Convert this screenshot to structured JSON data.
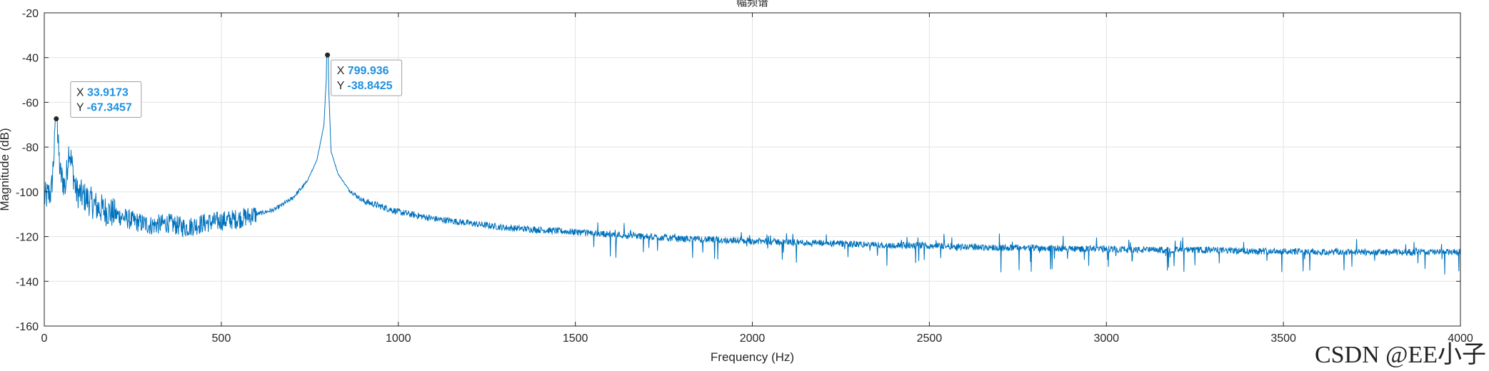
{
  "chart_data": {
    "type": "line",
    "title": "幅频谱",
    "xlabel": "Frequency (Hz)",
    "ylabel": "Magnitude (dB)",
    "xlim": [
      0,
      4000
    ],
    "ylim": [
      -160,
      -20
    ],
    "x_ticks": [
      0,
      500,
      1000,
      1500,
      2000,
      2500,
      3000,
      3500,
      4000
    ],
    "y_ticks": [
      -160,
      -140,
      -120,
      -100,
      -80,
      -60,
      -40,
      -20
    ],
    "grid": true,
    "series": [
      {
        "color": "#0072bd",
        "x": [
          0,
          20,
          33.9173,
          45,
          60,
          70,
          90,
          120,
          150,
          200,
          250,
          300,
          350,
          400,
          450,
          500,
          550,
          600,
          650,
          700,
          740,
          770,
          790,
          799.936,
          810,
          830,
          860,
          900,
          1000,
          1100,
          1200,
          1300,
          1400,
          1500,
          1600,
          1700,
          1800,
          1900,
          2000,
          2100,
          2200,
          2300,
          2400,
          2500,
          2600,
          2700,
          2800,
          2900,
          3000,
          3100,
          3200,
          3300,
          3400,
          3500,
          3600,
          3700,
          3800,
          3900,
          4000
        ],
        "y": [
          -103,
          -100,
          -67.3457,
          -92,
          -98,
          -80,
          -100,
          -103,
          -107,
          -110,
          -113,
          -115,
          -114,
          -116,
          -114,
          -113,
          -112,
          -110,
          -108,
          -103,
          -96,
          -86,
          -70,
          -38.8425,
          -82,
          -92,
          -99,
          -104,
          -109,
          -112,
          -114,
          -116,
          -117,
          -118,
          -119,
          -120,
          -121,
          -121.5,
          -122,
          -122.5,
          -123,
          -123.5,
          -124,
          -124,
          -124.5,
          -125,
          -125,
          -125.5,
          -125.5,
          -126,
          -126,
          -126,
          -126.5,
          -126.5,
          -127,
          -127,
          -127,
          -127,
          -127
        ]
      }
    ],
    "annotations": [
      {
        "x": 33.9173,
        "y": -67.3457,
        "label_x": "33.9173",
        "label_y": "-67.3457"
      },
      {
        "x": 799.936,
        "y": -38.8425,
        "label_x": "799.936",
        "label_y": "-38.8425"
      }
    ]
  },
  "watermark": "CSDN @EE小子"
}
